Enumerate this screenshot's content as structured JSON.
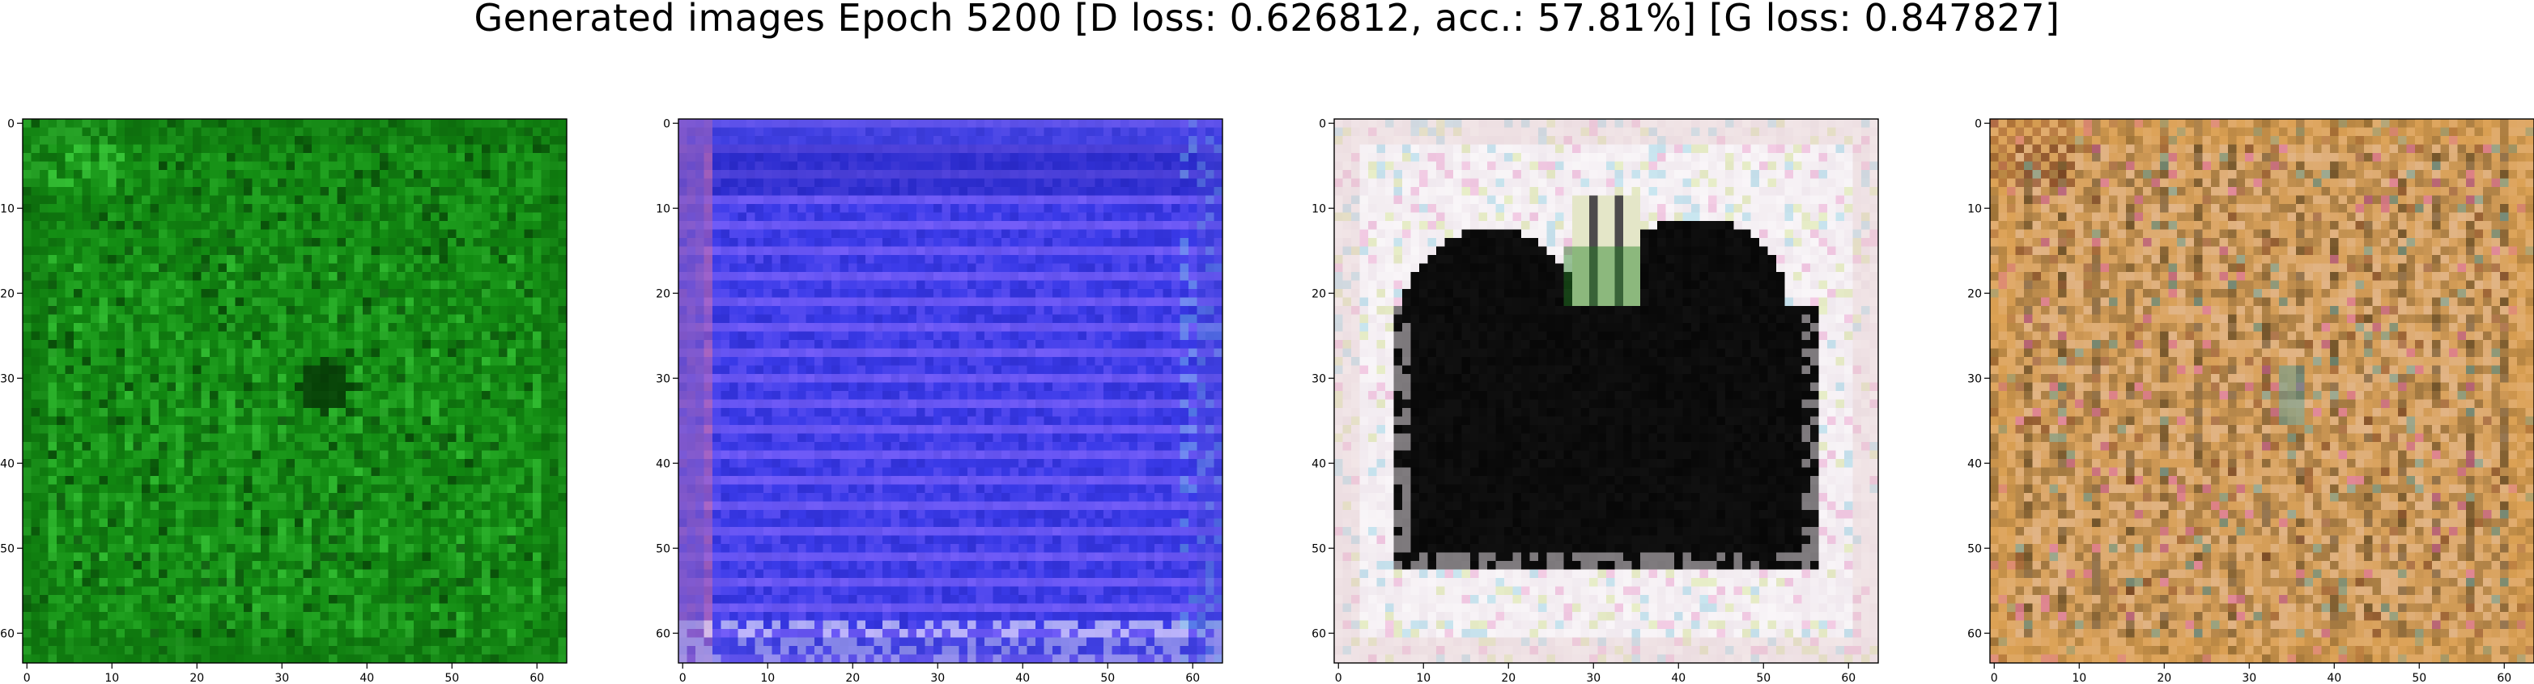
{
  "figure": {
    "title": "Generated images Epoch 5200 [D loss: 0.626812, acc.: 57.81%] [G loss: 0.847827]"
  },
  "axis": {
    "xticks": [
      0,
      10,
      20,
      30,
      40,
      50,
      60
    ],
    "yticks": [
      0,
      10,
      20,
      30,
      40,
      50,
      60
    ],
    "xlim": [
      -0.5,
      63.5
    ],
    "ylim": [
      63.5,
      -0.5
    ],
    "grid": false
  },
  "panels": [
    {
      "name": "panel-green",
      "base": "#128a12",
      "light": "#3fd23f",
      "dark": "#063806",
      "edge": "#0c6a0c",
      "accents": [
        "#7cff7c",
        "#1a1a4a",
        "#b06a2a"
      ],
      "content": "Dark green noisy texture with a dark spot near the center"
    },
    {
      "name": "panel-blue",
      "base": "#3a3ae8",
      "light": "#8c6cff",
      "dark": "#1e1eb0",
      "edge": "#4a4ad8",
      "accents": [
        "#c06ab0",
        "#7fe8e8",
        "#ffffff"
      ],
      "content": "Bright blue field with horizontal violet stripes"
    },
    {
      "name": "panel-dark-blob",
      "base": "#f0e8ee",
      "light": "#ffffff",
      "dark": "#070707",
      "edge": "#e4c8c8",
      "accents": [
        "#c8e070",
        "#e880c0",
        "#70c8e0"
      ],
      "content": "Pale noisy frame surrounding a large black heart-shaped blob"
    },
    {
      "name": "panel-orange",
      "base": "#d9a15a",
      "light": "#f2d9d9",
      "dark": "#3a2a10",
      "edge": "#e0a048",
      "accents": [
        "#5aa0a0",
        "#e060b0",
        "#804020"
      ],
      "content": "Orange and pinkish noisy texture with vertical streaks"
    }
  ]
}
